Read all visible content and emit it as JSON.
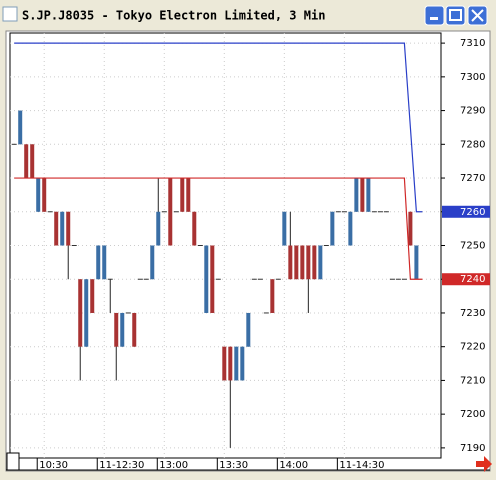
{
  "window": {
    "title": "S.JP.J8035 - Tokyo Electron Limited, 3 Min"
  },
  "chart_data": {
    "type": "candlestick",
    "up_color": "#3a6ea5",
    "down_color": "#a83232",
    "flat_color": "#333333",
    "open": [
      7280,
      7280,
      7280,
      7280,
      7260,
      7270,
      7260,
      7260,
      7250,
      7260,
      7250,
      7240,
      7220,
      7240,
      7240,
      7240,
      7240,
      7230,
      7220,
      7230,
      7230,
      7240,
      7240,
      7240,
      7250,
      7260,
      7270,
      7260,
      7270,
      7270,
      7260,
      7250,
      7230,
      7250,
      7240,
      7220,
      7220,
      7210,
      7210,
      7220,
      7240,
      7240,
      7230,
      7240,
      7240,
      7250,
      7250,
      7250,
      7250,
      7250,
      7250,
      7240,
      7250,
      7250,
      7260,
      7260,
      7250,
      7260,
      7270,
      7260,
      7260,
      7260,
      7260,
      7240,
      7240,
      7240,
      7260,
      7240
    ],
    "high": [
      7280,
      7290,
      7280,
      7280,
      7270,
      7270,
      7260,
      7260,
      7260,
      7260,
      7250,
      7240,
      7240,
      7240,
      7250,
      7250,
      7240,
      7230,
      7230,
      7230,
      7230,
      7240,
      7240,
      7250,
      7270,
      7260,
      7270,
      7260,
      7270,
      7270,
      7260,
      7250,
      7250,
      7250,
      7240,
      7220,
      7220,
      7220,
      7220,
      7230,
      7240,
      7240,
      7230,
      7240,
      7240,
      7260,
      7260,
      7250,
      7250,
      7250,
      7250,
      7250,
      7250,
      7260,
      7260,
      7260,
      7260,
      7270,
      7270,
      7270,
      7260,
      7260,
      7260,
      7240,
      7240,
      7240,
      7260,
      7250
    ],
    "low": [
      7280,
      7280,
      7270,
      7270,
      7260,
      7260,
      7260,
      7250,
      7250,
      7240,
      7250,
      7210,
      7220,
      7230,
      7240,
      7240,
      7230,
      7210,
      7220,
      7230,
      7220,
      7240,
      7240,
      7240,
      7250,
      7260,
      7250,
      7260,
      7260,
      7260,
      7250,
      7250,
      7230,
      7230,
      7240,
      7210,
      7190,
      7210,
      7210,
      7220,
      7240,
      7240,
      7230,
      7230,
      7240,
      7250,
      7240,
      7240,
      7240,
      7230,
      7240,
      7240,
      7250,
      7250,
      7260,
      7260,
      7250,
      7260,
      7260,
      7260,
      7260,
      7260,
      7260,
      7240,
      7240,
      7240,
      7250,
      7240
    ],
    "close": [
      7280,
      7290,
      7270,
      7270,
      7270,
      7260,
      7260,
      7250,
      7260,
      7250,
      7250,
      7220,
      7240,
      7230,
      7250,
      7250,
      7240,
      7220,
      7230,
      7230,
      7220,
      7240,
      7240,
      7250,
      7260,
      7260,
      7250,
      7260,
      7260,
      7260,
      7250,
      7250,
      7250,
      7230,
      7240,
      7210,
      7210,
      7220,
      7220,
      7230,
      7240,
      7240,
      7230,
      7230,
      7240,
      7260,
      7240,
      7240,
      7240,
      7240,
      7240,
      7250,
      7250,
      7260,
      7260,
      7260,
      7260,
      7270,
      7260,
      7270,
      7260,
      7260,
      7260,
      7240,
      7240,
      7240,
      7250,
      7250
    ],
    "lines": [
      {
        "color": "#2a3fc8",
        "x": [
          0,
          65,
          67,
          68
        ],
        "values": [
          7310,
          7310,
          7260,
          7260
        ]
      },
      {
        "color": "#d02828",
        "x": [
          0,
          65,
          66,
          68
        ],
        "values": [
          7270,
          7270,
          7240,
          7240
        ]
      }
    ],
    "ylim": [
      7187,
      7313
    ],
    "yticks": [
      7190,
      7200,
      7210,
      7220,
      7230,
      7240,
      7250,
      7260,
      7270,
      7280,
      7290,
      7300,
      7310
    ],
    "xlim": [
      -0.7,
      71.1
    ],
    "xticks": [
      {
        "value": 5,
        "label": "10:30"
      },
      {
        "value": 15,
        "label": "11-12:30"
      },
      {
        "value": 25,
        "label": "13:00"
      },
      {
        "value": 35,
        "label": "13:30"
      },
      {
        "value": 45,
        "label": "14:00"
      },
      {
        "value": 55,
        "label": "11-14:30"
      }
    ],
    "grid": true
  }
}
